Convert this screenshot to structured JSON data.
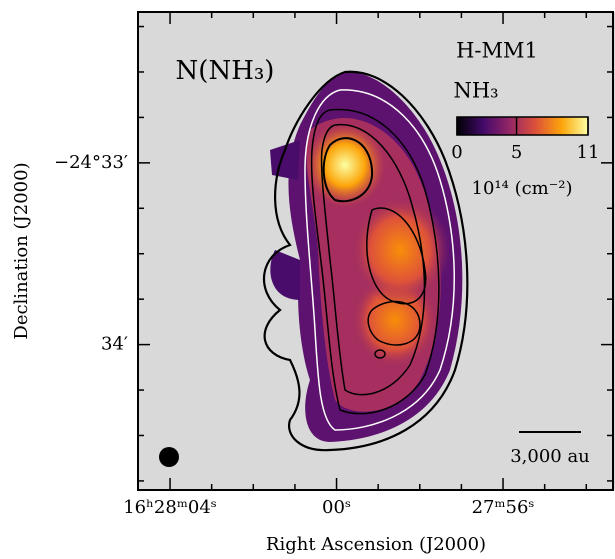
{
  "chart_data": {
    "type": "map",
    "title": "N(NH₃)",
    "source": "H-MM1",
    "molecule": "NH₃",
    "x_label": "Right Ascension (J2000)",
    "y_label": "Declination (J2000)",
    "xlim": [
      64.77,
      53.31
    ],
    "xticks": [
      {
        "value": 64,
        "label": "16ʰ28ᵐ04ˢ"
      },
      {
        "value": 60,
        "label": "00ˢ"
      },
      {
        "value": 56,
        "label": "27ᵐ56ˢ"
      }
    ],
    "xminor_ticks": [
      63,
      62,
      61,
      59,
      58,
      57,
      55,
      54
    ],
    "ylim": [
      32.17,
      34.8
    ],
    "yticks": [
      {
        "value": 33,
        "label": "−24°33′"
      },
      {
        "value": 34,
        "label": "34′"
      }
    ],
    "yminor_ticks": [
      32.25,
      32.5,
      32.75,
      33.25,
      33.5,
      33.75,
      34.25,
      34.5,
      34.75
    ],
    "colorbar": {
      "label": "10¹⁴ (cm⁻²)",
      "clim": [
        0,
        11
      ],
      "ticks": [
        0,
        5,
        11
      ],
      "colormap": [
        "#000004",
        "#420a68",
        "#932667",
        "#dd513a",
        "#fca50a",
        "#fcffa4"
      ]
    },
    "scalebar_label": "3,000 au",
    "background": "#d9d9d9"
  }
}
